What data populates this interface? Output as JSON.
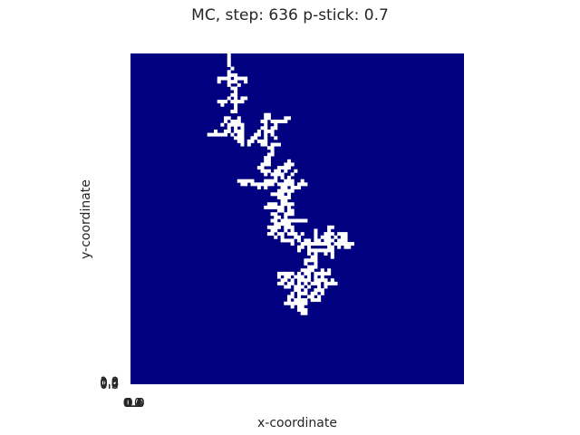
{
  "chart_data": {
    "type": "heatmap",
    "title": "MC, step: 636 p-stick: 0.7",
    "xlabel": "x-coordinate",
    "ylabel": "y-coordinate",
    "grid": false,
    "colors": {
      "background": "#000080",
      "occupied": "#ffffff"
    },
    "x_ticks": [
      "0.0",
      "0.2",
      "0.4",
      "0.6",
      "0.8",
      "1.0"
    ],
    "y_ticks": [
      "0.0",
      "0.2",
      "0.4",
      "0.6",
      "0.8",
      "1.0"
    ],
    "lattice_size": [
      100,
      100
    ],
    "occupied_cells": [
      [
        29,
        100
      ],
      [
        29,
        99
      ],
      [
        29,
        98
      ],
      [
        29,
        97
      ],
      [
        30,
        96
      ],
      [
        29,
        95
      ],
      [
        29,
        94
      ],
      [
        30,
        94
      ],
      [
        31,
        94
      ],
      [
        26,
        93
      ],
      [
        27,
        93
      ],
      [
        28,
        93
      ],
      [
        29,
        93
      ],
      [
        31,
        93
      ],
      [
        32,
        93
      ],
      [
        33,
        93
      ],
      [
        34,
        93
      ],
      [
        26,
        92
      ],
      [
        29,
        92
      ],
      [
        30,
        92
      ],
      [
        31,
        92
      ],
      [
        34,
        92
      ],
      [
        29,
        91
      ],
      [
        32,
        91
      ],
      [
        30,
        90
      ],
      [
        31,
        90
      ],
      [
        31,
        89
      ],
      [
        30,
        88
      ],
      [
        31,
        88
      ],
      [
        29,
        87
      ],
      [
        31,
        87
      ],
      [
        33,
        87
      ],
      [
        34,
        87
      ],
      [
        26,
        86
      ],
      [
        27,
        86
      ],
      [
        28,
        86
      ],
      [
        30,
        86
      ],
      [
        31,
        86
      ],
      [
        32,
        86
      ],
      [
        33,
        86
      ],
      [
        27,
        85
      ],
      [
        31,
        85
      ],
      [
        31,
        84
      ],
      [
        30,
        83
      ],
      [
        31,
        83
      ],
      [
        40,
        82
      ],
      [
        41,
        82
      ],
      [
        28,
        81
      ],
      [
        29,
        81
      ],
      [
        32,
        81
      ],
      [
        40,
        81
      ],
      [
        41,
        81
      ],
      [
        46,
        81
      ],
      [
        47,
        81
      ],
      [
        28,
        80
      ],
      [
        30,
        80
      ],
      [
        31,
        80
      ],
      [
        32,
        80
      ],
      [
        39,
        80
      ],
      [
        40,
        80
      ],
      [
        42,
        80
      ],
      [
        43,
        80
      ],
      [
        44,
        80
      ],
      [
        45,
        80
      ],
      [
        46,
        80
      ],
      [
        27,
        79
      ],
      [
        29,
        79
      ],
      [
        30,
        79
      ],
      [
        31,
        79
      ],
      [
        32,
        79
      ],
      [
        33,
        79
      ],
      [
        40,
        79
      ],
      [
        43,
        79
      ],
      [
        29,
        78
      ],
      [
        31,
        78
      ],
      [
        33,
        78
      ],
      [
        39,
        78
      ],
      [
        40,
        78
      ],
      [
        42,
        78
      ],
      [
        43,
        78
      ],
      [
        25,
        77
      ],
      [
        28,
        77
      ],
      [
        29,
        77
      ],
      [
        31,
        77
      ],
      [
        32,
        77
      ],
      [
        33,
        77
      ],
      [
        38,
        77
      ],
      [
        40,
        77
      ],
      [
        41,
        77
      ],
      [
        42,
        77
      ],
      [
        23,
        76
      ],
      [
        24,
        76
      ],
      [
        25,
        76
      ],
      [
        26,
        76
      ],
      [
        27,
        76
      ],
      [
        28,
        76
      ],
      [
        30,
        76
      ],
      [
        32,
        76
      ],
      [
        33,
        76
      ],
      [
        37,
        76
      ],
      [
        38,
        76
      ],
      [
        40,
        76
      ],
      [
        42,
        76
      ],
      [
        31,
        75
      ],
      [
        32,
        75
      ],
      [
        33,
        75
      ],
      [
        36,
        75
      ],
      [
        37,
        75
      ],
      [
        40,
        75
      ],
      [
        43,
        75
      ],
      [
        32,
        74
      ],
      [
        33,
        74
      ],
      [
        35,
        74
      ],
      [
        36,
        74
      ],
      [
        38,
        74
      ],
      [
        39,
        74
      ],
      [
        40,
        74
      ],
      [
        33,
        73
      ],
      [
        35,
        73
      ],
      [
        39,
        73
      ],
      [
        40,
        73
      ],
      [
        42,
        73
      ],
      [
        43,
        73
      ],
      [
        44,
        73
      ],
      [
        41,
        72
      ],
      [
        42,
        72
      ],
      [
        42,
        71
      ],
      [
        41,
        70
      ],
      [
        42,
        70
      ],
      [
        40,
        69
      ],
      [
        41,
        69
      ],
      [
        40,
        68
      ],
      [
        41,
        68
      ],
      [
        47,
        68
      ],
      [
        39,
        67
      ],
      [
        40,
        67
      ],
      [
        41,
        67
      ],
      [
        46,
        67
      ],
      [
        47,
        67
      ],
      [
        48,
        67
      ],
      [
        38,
        66
      ],
      [
        39,
        66
      ],
      [
        44,
        66
      ],
      [
        45,
        66
      ],
      [
        46,
        66
      ],
      [
        47,
        66
      ],
      [
        39,
        65
      ],
      [
        40,
        65
      ],
      [
        41,
        65
      ],
      [
        43,
        65
      ],
      [
        44,
        65
      ],
      [
        46,
        65
      ],
      [
        49,
        65
      ],
      [
        40,
        64
      ],
      [
        42,
        64
      ],
      [
        43,
        64
      ],
      [
        44,
        64
      ],
      [
        45,
        64
      ],
      [
        48,
        64
      ],
      [
        43,
        63
      ],
      [
        45,
        63
      ],
      [
        47,
        63
      ],
      [
        32,
        62
      ],
      [
        33,
        62
      ],
      [
        34,
        62
      ],
      [
        35,
        62
      ],
      [
        36,
        62
      ],
      [
        40,
        62
      ],
      [
        41,
        62
      ],
      [
        42,
        62
      ],
      [
        43,
        62
      ],
      [
        46,
        62
      ],
      [
        47,
        62
      ],
      [
        48,
        62
      ],
      [
        51,
        62
      ],
      [
        33,
        61
      ],
      [
        34,
        61
      ],
      [
        36,
        61
      ],
      [
        37,
        61
      ],
      [
        38,
        61
      ],
      [
        39,
        61
      ],
      [
        40,
        61
      ],
      [
        41,
        61
      ],
      [
        42,
        61
      ],
      [
        44,
        61
      ],
      [
        45,
        61
      ],
      [
        46,
        61
      ],
      [
        47,
        61
      ],
      [
        48,
        61
      ],
      [
        50,
        61
      ],
      [
        51,
        61
      ],
      [
        52,
        61
      ],
      [
        38,
        60
      ],
      [
        40,
        60
      ],
      [
        45,
        60
      ],
      [
        46,
        60
      ],
      [
        48,
        60
      ],
      [
        49,
        60
      ],
      [
        50,
        60
      ],
      [
        44,
        59
      ],
      [
        45,
        59
      ],
      [
        46,
        59
      ],
      [
        47,
        59
      ],
      [
        48,
        59
      ],
      [
        42,
        58
      ],
      [
        43,
        58
      ],
      [
        44,
        58
      ],
      [
        45,
        58
      ],
      [
        47,
        58
      ],
      [
        44,
        57
      ],
      [
        45,
        57
      ],
      [
        46,
        57
      ],
      [
        47,
        57
      ],
      [
        45,
        56
      ],
      [
        46,
        56
      ],
      [
        41,
        55
      ],
      [
        42,
        55
      ],
      [
        43,
        55
      ],
      [
        45,
        55
      ],
      [
        46,
        55
      ],
      [
        47,
        55
      ],
      [
        48,
        55
      ],
      [
        40,
        54
      ],
      [
        41,
        54
      ],
      [
        42,
        54
      ],
      [
        43,
        54
      ],
      [
        44,
        54
      ],
      [
        45,
        54
      ],
      [
        47,
        54
      ],
      [
        44,
        53
      ],
      [
        45,
        53
      ],
      [
        47,
        53
      ],
      [
        48,
        53
      ],
      [
        42,
        52
      ],
      [
        43,
        52
      ],
      [
        46,
        52
      ],
      [
        47,
        52
      ],
      [
        48,
        52
      ],
      [
        43,
        51
      ],
      [
        44,
        51
      ],
      [
        46,
        51
      ],
      [
        42,
        50
      ],
      [
        43,
        50
      ],
      [
        45,
        50
      ],
      [
        46,
        50
      ],
      [
        47,
        50
      ],
      [
        48,
        50
      ],
      [
        49,
        50
      ],
      [
        50,
        50
      ],
      [
        51,
        50
      ],
      [
        52,
        50
      ],
      [
        43,
        49
      ],
      [
        44,
        49
      ],
      [
        45,
        49
      ],
      [
        46,
        49
      ],
      [
        47,
        49
      ],
      [
        41,
        48
      ],
      [
        42,
        48
      ],
      [
        43,
        48
      ],
      [
        44,
        48
      ],
      [
        46,
        48
      ],
      [
        47,
        48
      ],
      [
        48,
        48
      ],
      [
        59,
        48
      ],
      [
        60,
        48
      ],
      [
        42,
        47
      ],
      [
        43,
        47
      ],
      [
        46,
        47
      ],
      [
        48,
        47
      ],
      [
        55,
        47
      ],
      [
        59,
        47
      ],
      [
        41,
        46
      ],
      [
        42,
        46
      ],
      [
        44,
        46
      ],
      [
        45,
        46
      ],
      [
        47,
        46
      ],
      [
        48,
        46
      ],
      [
        49,
        46
      ],
      [
        51,
        46
      ],
      [
        55,
        46
      ],
      [
        58,
        46
      ],
      [
        59,
        46
      ],
      [
        60,
        46
      ],
      [
        62,
        46
      ],
      [
        63,
        46
      ],
      [
        64,
        46
      ],
      [
        43,
        45
      ],
      [
        45,
        45
      ],
      [
        49,
        45
      ],
      [
        50,
        45
      ],
      [
        55,
        45
      ],
      [
        57,
        45
      ],
      [
        58,
        45
      ],
      [
        59,
        45
      ],
      [
        61,
        45
      ],
      [
        63,
        45
      ],
      [
        64,
        45
      ],
      [
        45,
        44
      ],
      [
        46,
        44
      ],
      [
        47,
        44
      ],
      [
        48,
        44
      ],
      [
        50,
        44
      ],
      [
        52,
        44
      ],
      [
        53,
        44
      ],
      [
        55,
        44
      ],
      [
        56,
        44
      ],
      [
        58,
        44
      ],
      [
        59,
        44
      ],
      [
        60,
        44
      ],
      [
        62,
        44
      ],
      [
        63,
        44
      ],
      [
        64,
        44
      ],
      [
        48,
        43
      ],
      [
        51,
        43
      ],
      [
        52,
        43
      ],
      [
        53,
        43
      ],
      [
        54,
        43
      ],
      [
        55,
        43
      ],
      [
        56,
        43
      ],
      [
        57,
        43
      ],
      [
        58,
        43
      ],
      [
        59,
        43
      ],
      [
        61,
        43
      ],
      [
        62,
        43
      ],
      [
        63,
        43
      ],
      [
        64,
        43
      ],
      [
        65,
        43
      ],
      [
        66,
        43
      ],
      [
        50,
        42
      ],
      [
        51,
        42
      ],
      [
        53,
        42
      ],
      [
        59,
        42
      ],
      [
        60,
        42
      ],
      [
        62,
        42
      ],
      [
        64,
        42
      ],
      [
        65,
        42
      ],
      [
        50,
        41
      ],
      [
        53,
        41
      ],
      [
        54,
        41
      ],
      [
        55,
        41
      ],
      [
        56,
        41
      ],
      [
        57,
        41
      ],
      [
        58,
        41
      ],
      [
        59,
        41
      ],
      [
        60,
        41
      ],
      [
        53,
        40
      ],
      [
        55,
        40
      ],
      [
        58,
        40
      ],
      [
        60,
        40
      ],
      [
        54,
        39
      ],
      [
        55,
        39
      ],
      [
        60,
        39
      ],
      [
        52,
        38
      ],
      [
        53,
        38
      ],
      [
        54,
        38
      ],
      [
        55,
        38
      ],
      [
        52,
        37
      ],
      [
        55,
        37
      ],
      [
        53,
        36
      ],
      [
        54,
        36
      ],
      [
        55,
        36
      ],
      [
        51,
        35
      ],
      [
        52,
        35
      ],
      [
        53,
        35
      ],
      [
        54,
        35
      ],
      [
        57,
        35
      ],
      [
        59,
        35
      ],
      [
        44,
        34
      ],
      [
        45,
        34
      ],
      [
        46,
        34
      ],
      [
        47,
        34
      ],
      [
        48,
        34
      ],
      [
        50,
        34
      ],
      [
        52,
        34
      ],
      [
        53,
        34
      ],
      [
        55,
        34
      ],
      [
        56,
        34
      ],
      [
        57,
        34
      ],
      [
        58,
        34
      ],
      [
        59,
        34
      ],
      [
        44,
        33
      ],
      [
        46,
        33
      ],
      [
        47,
        33
      ],
      [
        49,
        33
      ],
      [
        50,
        33
      ],
      [
        51,
        33
      ],
      [
        53,
        33
      ],
      [
        55,
        33
      ],
      [
        57,
        33
      ],
      [
        45,
        32
      ],
      [
        46,
        32
      ],
      [
        48,
        32
      ],
      [
        50,
        32
      ],
      [
        51,
        32
      ],
      [
        52,
        32
      ],
      [
        53,
        32
      ],
      [
        55,
        32
      ],
      [
        56,
        32
      ],
      [
        57,
        32
      ],
      [
        58,
        32
      ],
      [
        60,
        32
      ],
      [
        44,
        31
      ],
      [
        45,
        31
      ],
      [
        47,
        31
      ],
      [
        48,
        31
      ],
      [
        50,
        31
      ],
      [
        52,
        31
      ],
      [
        54,
        31
      ],
      [
        55,
        31
      ],
      [
        56,
        31
      ],
      [
        58,
        31
      ],
      [
        59,
        31
      ],
      [
        60,
        31
      ],
      [
        61,
        31
      ],
      [
        46,
        30
      ],
      [
        47,
        30
      ],
      [
        49,
        30
      ],
      [
        50,
        30
      ],
      [
        51,
        30
      ],
      [
        53,
        30
      ],
      [
        56,
        30
      ],
      [
        58,
        30
      ],
      [
        49,
        29
      ],
      [
        50,
        29
      ],
      [
        52,
        29
      ],
      [
        55,
        29
      ],
      [
        56,
        29
      ],
      [
        57,
        29
      ],
      [
        48,
        28
      ],
      [
        50,
        28
      ],
      [
        51,
        28
      ],
      [
        52,
        28
      ],
      [
        54,
        28
      ],
      [
        55,
        28
      ],
      [
        57,
        28
      ],
      [
        47,
        27
      ],
      [
        48,
        27
      ],
      [
        50,
        27
      ],
      [
        53,
        27
      ],
      [
        54,
        27
      ],
      [
        56,
        27
      ],
      [
        47,
        26
      ],
      [
        49,
        26
      ],
      [
        50,
        26
      ],
      [
        51,
        26
      ],
      [
        52,
        26
      ],
      [
        54,
        26
      ],
      [
        55,
        26
      ],
      [
        56,
        26
      ],
      [
        46,
        25
      ],
      [
        47,
        25
      ],
      [
        48,
        25
      ],
      [
        49,
        25
      ],
      [
        50,
        25
      ],
      [
        51,
        25
      ],
      [
        52,
        25
      ],
      [
        48,
        24
      ],
      [
        50,
        24
      ],
      [
        51,
        24
      ],
      [
        50,
        23
      ],
      [
        51,
        23
      ],
      [
        52,
        23
      ],
      [
        51,
        22
      ],
      [
        52,
        22
      ]
    ]
  }
}
